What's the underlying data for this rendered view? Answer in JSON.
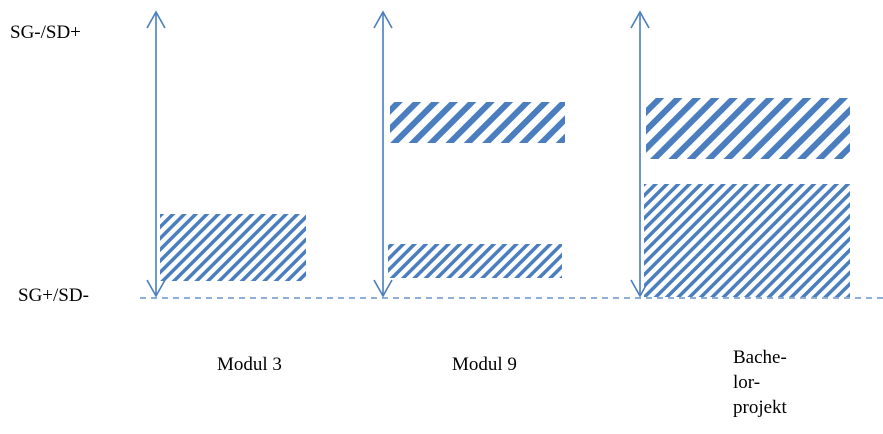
{
  "axis_labels": {
    "top": "SG-/SD+",
    "bottom": "SG+/SD-"
  },
  "columns": [
    {
      "label_lines": [
        "Modul 3"
      ]
    },
    {
      "label_lines": [
        "Modul 9"
      ]
    },
    {
      "label_lines": [
        "Bache-",
        "lor-",
        "projekt"
      ]
    }
  ],
  "colors": {
    "axis": "#4a7ebf",
    "stripe": "#4a7ebf"
  }
}
